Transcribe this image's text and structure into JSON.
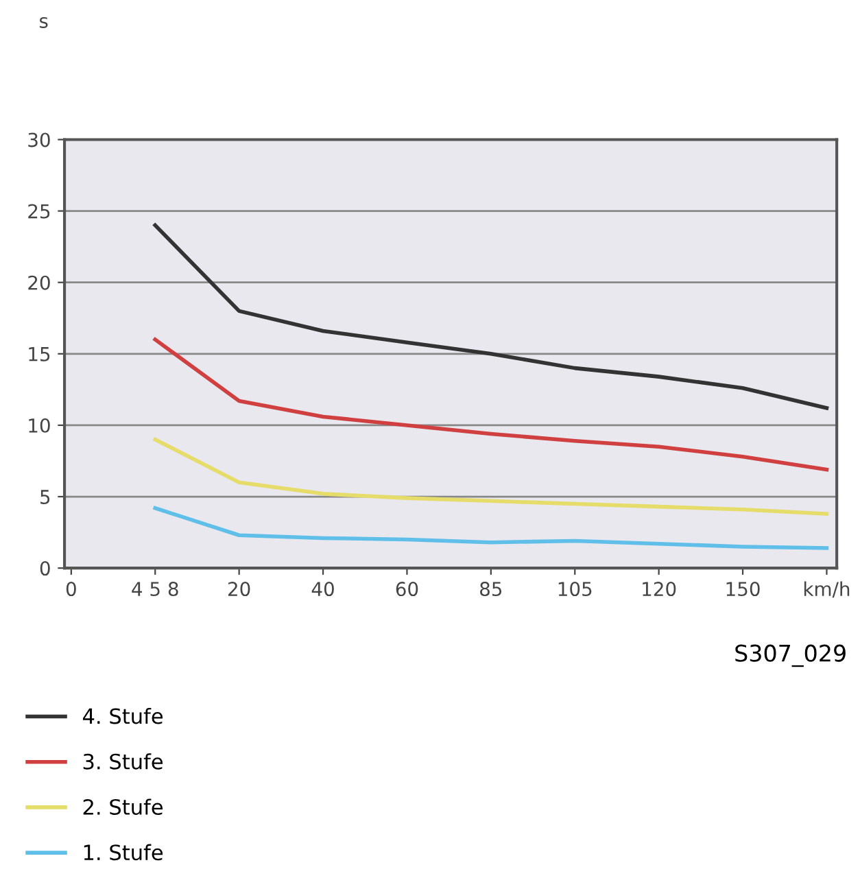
{
  "chart_data": {
    "type": "line",
    "annotations": [
      "s",
      "S307_029"
    ],
    "categories": [
      "0",
      "4 5 8",
      "20",
      "40",
      "60",
      "85",
      "105",
      "120",
      "150",
      "km/h"
    ],
    "ylim": [
      0,
      30
    ],
    "yticks": [
      0,
      5,
      10,
      15,
      20,
      25,
      30
    ],
    "grid": "y",
    "legend": "bottom",
    "marker": "none",
    "line_style": "solid",
    "series": [
      {
        "name": "4. Stufe",
        "color": "#333333",
        "values": [
          null,
          24,
          18,
          16.6,
          15.8,
          15.0,
          14.0,
          13.4,
          12.6,
          11.2
        ]
      },
      {
        "name": "3. Stufe",
        "color": "#d04040",
        "values": [
          null,
          16,
          11.7,
          10.6,
          10.0,
          9.4,
          8.9,
          8.5,
          7.8,
          6.9
        ]
      },
      {
        "name": "2. Stufe",
        "color": "#e6dc6a",
        "values": [
          null,
          9.0,
          6.0,
          5.2,
          4.9,
          4.7,
          4.5,
          4.3,
          4.1,
          3.8
        ]
      },
      {
        "name": "1. Stufe",
        "color": "#5fbfe8",
        "values": [
          null,
          4.2,
          2.3,
          2.1,
          2.0,
          1.8,
          1.9,
          1.7,
          1.5,
          1.4
        ]
      }
    ]
  }
}
